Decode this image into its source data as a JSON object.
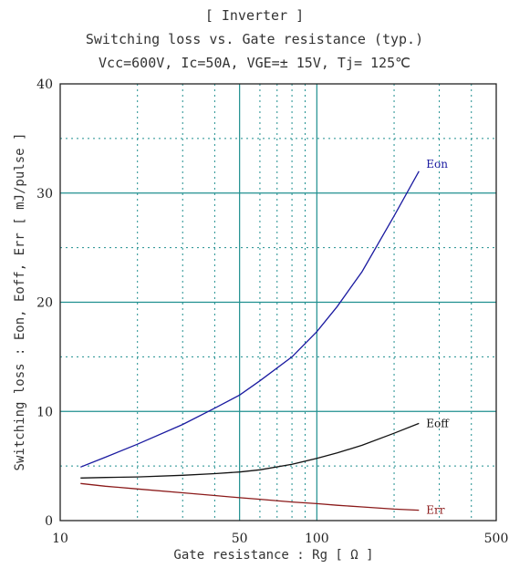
{
  "chart_data": {
    "type": "line",
    "title": "[ Inverter ]",
    "subtitle": "Switching loss vs. Gate resistance (typ.)",
    "conditions": "Vcc=600V, Ic=50A, VGE=± 15V, Tj= 125℃",
    "xlabel": "Gate resistance : Rg [ Ω ]",
    "ylabel": "Switching loss : Eon, Eoff, Err [ mJ/pulse ]",
    "x_scale": "log",
    "xlim": [
      10,
      500
    ],
    "ylim": [
      0,
      40
    ],
    "x_ticks": [
      10,
      50,
      100,
      500
    ],
    "y_ticks": [
      0,
      10,
      20,
      30,
      40
    ],
    "grid": true,
    "series": [
      {
        "name": "Eon",
        "color": "#1a1aa0",
        "x": [
          12,
          15,
          20,
          30,
          40,
          50,
          60,
          80,
          100,
          120,
          150,
          200,
          250
        ],
        "y": [
          4.9,
          5.8,
          7.0,
          8.8,
          10.3,
          11.5,
          12.8,
          15.0,
          17.3,
          19.6,
          22.8,
          27.9,
          32.0
        ]
      },
      {
        "name": "Eoff",
        "color": "#111111",
        "x": [
          12,
          15,
          20,
          30,
          40,
          50,
          60,
          80,
          100,
          120,
          150,
          200,
          250
        ],
        "y": [
          3.9,
          3.95,
          4.0,
          4.15,
          4.3,
          4.45,
          4.65,
          5.15,
          5.7,
          6.2,
          6.9,
          8.0,
          8.9
        ]
      },
      {
        "name": "Err",
        "color": "#8b1a1a",
        "x": [
          12,
          15,
          20,
          30,
          40,
          50,
          60,
          80,
          100,
          120,
          150,
          200,
          250
        ],
        "y": [
          3.4,
          3.15,
          2.9,
          2.55,
          2.3,
          2.1,
          1.95,
          1.7,
          1.55,
          1.4,
          1.25,
          1.05,
          0.95
        ]
      }
    ]
  }
}
